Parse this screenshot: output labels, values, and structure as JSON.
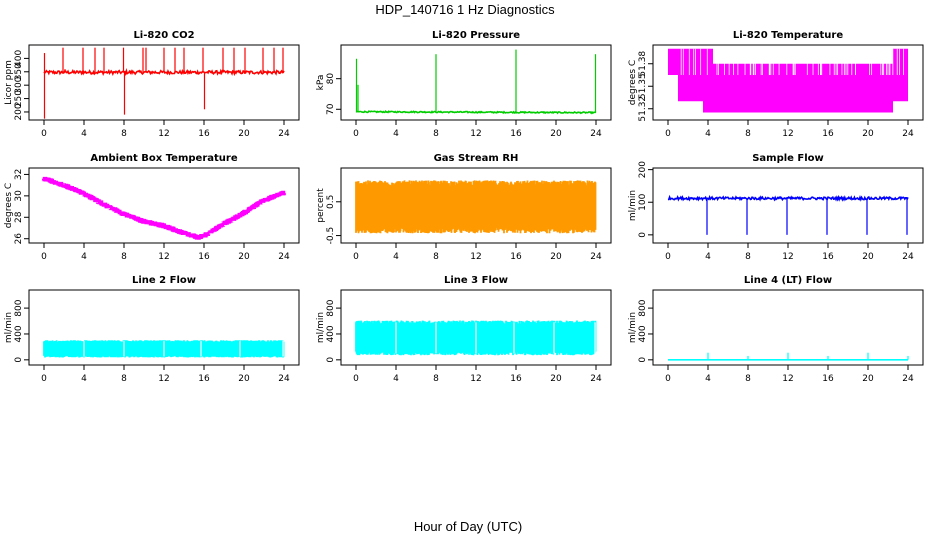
{
  "title": "HDP_140716  1 Hz Diagnostics",
  "xlabel": "Hour of Day (UTC)",
  "chart_data": [
    {
      "type": "line",
      "title": "Li-820 CO2",
      "ylabel": "Licor ppm",
      "color": "#ff0000",
      "xlim": [
        0,
        24
      ],
      "ylim": [
        170,
        450
      ],
      "xticks": [
        "0",
        "4",
        "8",
        "12",
        "16",
        "20",
        "24"
      ],
      "xtick_values": [
        0,
        4,
        8,
        12,
        16,
        20,
        24
      ],
      "yticks": [
        "200",
        "250",
        "300",
        "350",
        "400"
      ],
      "ytick_values": [
        200,
        250,
        300,
        350,
        400
      ],
      "baseline": 348,
      "noise": 6,
      "spikes": [
        [
          0.05,
          175
        ],
        [
          0.05,
          420
        ],
        [
          1.9,
          440
        ],
        [
          2.1,
          360
        ],
        [
          3.9,
          440
        ],
        [
          5.1,
          440
        ],
        [
          6.0,
          440
        ],
        [
          7.95,
          440
        ],
        [
          8.05,
          190
        ],
        [
          9.9,
          440
        ],
        [
          10.2,
          440
        ],
        [
          12.0,
          440
        ],
        [
          13.1,
          440
        ],
        [
          14.0,
          440
        ],
        [
          15.9,
          440
        ],
        [
          16.05,
          210
        ],
        [
          17.9,
          440
        ],
        [
          19.0,
          440
        ],
        [
          20.1,
          440
        ],
        [
          21.9,
          440
        ],
        [
          23.0,
          440
        ],
        [
          23.9,
          440
        ]
      ]
    },
    {
      "type": "line",
      "title": "Li-820 Pressure",
      "ylabel": "kPa",
      "color": "#00cc00",
      "xlim": [
        0,
        24
      ],
      "ylim": [
        66.5,
        91
      ],
      "xticks": [
        "0",
        "4",
        "8",
        "12",
        "16",
        "20",
        "24"
      ],
      "xtick_values": [
        0,
        4,
        8,
        12,
        16,
        20,
        24
      ],
      "yticks": [
        "70",
        "80"
      ],
      "ytick_values": [
        70,
        80
      ],
      "baseline": 69.2,
      "noise": 0.2,
      "trend_end": 68.9,
      "spikes": [
        [
          0.05,
          86.5
        ],
        [
          0.2,
          78
        ],
        [
          8.0,
          88
        ],
        [
          16.0,
          89.5
        ],
        [
          23.95,
          88
        ]
      ]
    },
    {
      "type": "band",
      "title": "Li-820 Temperature",
      "ylabel": "degrees C",
      "color": "#ff00ff",
      "xlim": [
        0,
        24
      ],
      "ylim": [
        51.305,
        51.405
      ],
      "xticks": [
        "0",
        "4",
        "8",
        "12",
        "16",
        "20",
        "24"
      ],
      "xtick_values": [
        0,
        4,
        8,
        12,
        16,
        20,
        24
      ],
      "yticks": [
        "51.32",
        "51.35",
        "51.38"
      ],
      "ytick_values": [
        51.32,
        51.35,
        51.38
      ],
      "segments": [
        [
          0.0,
          51.365,
          51.4
        ],
        [
          1.0,
          51.33,
          51.4
        ],
        [
          3.5,
          51.315,
          51.4
        ],
        [
          4.5,
          51.315,
          51.38
        ],
        [
          12.0,
          51.315,
          51.38
        ],
        [
          20.5,
          51.315,
          51.38
        ],
        [
          22.5,
          51.33,
          51.4
        ],
        [
          24.0,
          51.33,
          51.4
        ]
      ]
    },
    {
      "type": "line",
      "title": "Ambient Box Temperature",
      "ylabel": "degrees C",
      "color": "#ff00ff",
      "xlim": [
        0,
        24
      ],
      "ylim": [
        25.6,
        32.6
      ],
      "xticks": [
        "0",
        "4",
        "8",
        "12",
        "16",
        "20",
        "24"
      ],
      "xtick_values": [
        0,
        4,
        8,
        12,
        16,
        20,
        24
      ],
      "yticks": [
        "26",
        "28",
        "30",
        "32"
      ],
      "ytick_values": [
        26,
        28,
        30,
        32
      ],
      "curve": [
        [
          0,
          31.6
        ],
        [
          2,
          31
        ],
        [
          4,
          30.2
        ],
        [
          6,
          29.2
        ],
        [
          8,
          28.3
        ],
        [
          10,
          27.6
        ],
        [
          12,
          27.2
        ],
        [
          14,
          26.5
        ],
        [
          15.5,
          26.1
        ],
        [
          16.5,
          26.5
        ],
        [
          18,
          27.4
        ],
        [
          20,
          28.4
        ],
        [
          22,
          29.6
        ],
        [
          24,
          30.3
        ]
      ],
      "noise": 0.25
    },
    {
      "type": "band",
      "title": "Gas Stream RH",
      "ylabel": "percent",
      "color": "#ff9900",
      "xlim": [
        0,
        24
      ],
      "ylim": [
        -0.72,
        1.5
      ],
      "xticks": [
        "0",
        "4",
        "8",
        "12",
        "16",
        "20",
        "24"
      ],
      "xtick_values": [
        0,
        4,
        8,
        12,
        16,
        20,
        24
      ],
      "yticks": [
        "-0.5",
        "0.5"
      ],
      "ytick_values": [
        -0.5,
        0.5
      ],
      "lower": -0.35,
      "upper": 1.05
    },
    {
      "type": "line",
      "title": "Sample Flow",
      "ylabel": "ml/min",
      "color": "#0000ff",
      "xlim": [
        0,
        24
      ],
      "ylim": [
        -25,
        205
      ],
      "xticks": [
        "0",
        "4",
        "8",
        "12",
        "16",
        "20",
        "24"
      ],
      "xtick_values": [
        0,
        4,
        8,
        12,
        16,
        20,
        24
      ],
      "yticks": [
        "0",
        "100",
        "200"
      ],
      "ytick_values": [
        0,
        100,
        200
      ],
      "baseline": 112,
      "noise": 4,
      "spikes": [
        [
          3.9,
          0
        ],
        [
          7.9,
          0
        ],
        [
          11.9,
          0
        ],
        [
          15.9,
          0
        ],
        [
          19.9,
          0
        ],
        [
          23.9,
          0
        ]
      ]
    },
    {
      "type": "band",
      "title": "Line 2 Flow",
      "ylabel": "ml/min",
      "color": "#00ffff",
      "xlim": [
        0,
        24
      ],
      "ylim": [
        -80,
        1080
      ],
      "xticks": [
        "0",
        "4",
        "8",
        "12",
        "16",
        "20",
        "24"
      ],
      "xtick_values": [
        0,
        4,
        8,
        12,
        16,
        20,
        24
      ],
      "yticks": [
        "0",
        "400",
        "800"
      ],
      "ytick_values": [
        0,
        400,
        800
      ],
      "lower": 50,
      "upper": 290,
      "gaps": [
        4.0,
        8.0,
        12.0,
        15.7,
        19.6,
        23.9
      ]
    },
    {
      "type": "band",
      "title": "Line 3 Flow",
      "ylabel": "ml/min",
      "color": "#00ffff",
      "xlim": [
        0,
        24
      ],
      "ylim": [
        -80,
        1080
      ],
      "xticks": [
        "0",
        "4",
        "8",
        "12",
        "16",
        "20",
        "24"
      ],
      "xtick_values": [
        0,
        4,
        8,
        12,
        16,
        20,
        24
      ],
      "yticks": [
        "0",
        "400",
        "800"
      ],
      "ytick_values": [
        0,
        400,
        800
      ],
      "lower": 100,
      "upper": 580,
      "gaps": [
        4.0,
        8.0,
        12.0,
        15.8,
        19.8,
        23.9
      ]
    },
    {
      "type": "line",
      "title": "Line 4 (LT) Flow",
      "ylabel": "ml/min",
      "color": "#00ffff",
      "xlim": [
        0,
        24
      ],
      "ylim": [
        -80,
        1080
      ],
      "xticks": [
        "0",
        "4",
        "8",
        "12",
        "16",
        "20",
        "24"
      ],
      "xtick_values": [
        0,
        4,
        8,
        12,
        16,
        20,
        24
      ],
      "yticks": [
        "0",
        "400",
        "800"
      ],
      "ytick_values": [
        0,
        400,
        800
      ],
      "baseline": 0,
      "noise": 0,
      "spikes": [
        [
          4.0,
          110
        ],
        [
          8.0,
          60
        ],
        [
          12.0,
          110
        ],
        [
          16.0,
          60
        ],
        [
          20.0,
          110
        ],
        [
          24.0,
          60
        ]
      ]
    }
  ]
}
